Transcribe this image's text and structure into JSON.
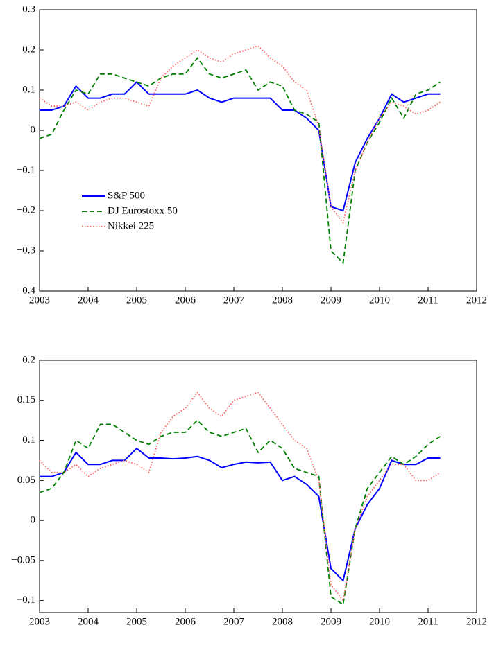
{
  "chart_data": [
    {
      "type": "line",
      "xlim": [
        2003,
        2012
      ],
      "xticks": [
        2003,
        2004,
        2005,
        2006,
        2007,
        2008,
        2009,
        2010,
        2011,
        2012
      ],
      "ylim": [
        -0.4,
        0.3
      ],
      "yticks": [
        {
          "value": -0.4,
          "label": "−0.4"
        },
        {
          "value": -0.3,
          "label": "−0.3"
        },
        {
          "value": -0.2,
          "label": "−0.2"
        },
        {
          "value": -0.1,
          "label": "−0.1"
        },
        0,
        0.1,
        0.2,
        0.3
      ],
      "legend": "center-left",
      "x": [
        2003,
        2003.25,
        2003.5,
        2003.75,
        2004,
        2004.25,
        2004.5,
        2004.75,
        2005,
        2005.25,
        2005.5,
        2005.75,
        2006,
        2006.25,
        2006.5,
        2006.75,
        2007,
        2007.25,
        2007.5,
        2007.75,
        2008,
        2008.25,
        2008.5,
        2008.75,
        2009,
        2009.25,
        2009.5,
        2009.75,
        2010,
        2010.25,
        2010.5,
        2010.75,
        2011,
        2011.25
      ],
      "series": [
        {
          "name": "S&P 500",
          "color": "#0000ff",
          "style": "solid",
          "values": [
            0.05,
            0.05,
            0.06,
            0.11,
            0.08,
            0.08,
            0.09,
            0.09,
            0.12,
            0.09,
            0.09,
            0.09,
            0.09,
            0.1,
            0.08,
            0.07,
            0.08,
            0.08,
            0.08,
            0.08,
            0.05,
            0.05,
            0.03,
            0.0,
            -0.19,
            -0.2,
            -0.08,
            -0.02,
            0.03,
            0.09,
            0.07,
            0.08,
            0.09,
            0.09
          ]
        },
        {
          "name": "DJ Eurostoxx 50",
          "color": "#008000",
          "style": "dashed",
          "values": [
            -0.02,
            -0.01,
            0.05,
            0.1,
            0.09,
            0.14,
            0.14,
            0.13,
            0.12,
            0.11,
            0.13,
            0.14,
            0.14,
            0.18,
            0.14,
            0.13,
            0.14,
            0.15,
            0.1,
            0.12,
            0.11,
            0.05,
            0.04,
            0.02,
            -0.3,
            -0.33,
            -0.1,
            -0.03,
            0.02,
            0.08,
            0.03,
            0.09,
            0.1,
            0.12
          ]
        },
        {
          "name": "Nikkei 225",
          "color": "#ff6060",
          "style": "dotted",
          "values": [
            0.08,
            0.06,
            0.06,
            0.07,
            0.05,
            0.07,
            0.08,
            0.08,
            0.07,
            0.06,
            0.13,
            0.16,
            0.18,
            0.2,
            0.18,
            0.17,
            0.19,
            0.2,
            0.21,
            0.18,
            0.16,
            0.12,
            0.1,
            0.01,
            -0.19,
            -0.23,
            -0.1,
            -0.03,
            0.03,
            0.07,
            0.06,
            0.04,
            0.05,
            0.07
          ]
        }
      ]
    },
    {
      "type": "line",
      "xlim": [
        2003,
        2012
      ],
      "xticks": [
        2003,
        2004,
        2005,
        2006,
        2007,
        2008,
        2009,
        2010,
        2011,
        2012
      ],
      "ylim": [
        -0.115,
        0.2
      ],
      "yticks": [
        {
          "value": -0.1,
          "label": "−0.1"
        },
        {
          "value": -0.05,
          "label": "−0.05"
        },
        0,
        0.05,
        0.1,
        0.15,
        0.2
      ],
      "x": [
        2003,
        2003.25,
        2003.5,
        2003.75,
        2004,
        2004.25,
        2004.5,
        2004.75,
        2005,
        2005.25,
        2005.5,
        2005.75,
        2006,
        2006.25,
        2006.5,
        2006.75,
        2007,
        2007.25,
        2007.5,
        2007.75,
        2008,
        2008.25,
        2008.5,
        2008.75,
        2009,
        2009.25,
        2009.5,
        2009.75,
        2010,
        2010.25,
        2010.5,
        2010.75,
        2011,
        2011.25
      ],
      "series": [
        {
          "color": "#0000ff",
          "style": "solid",
          "values": [
            0.055,
            0.055,
            0.06,
            0.085,
            0.07,
            0.07,
            0.075,
            0.075,
            0.09,
            0.078,
            0.078,
            0.077,
            0.078,
            0.08,
            0.075,
            0.066,
            0.07,
            0.073,
            0.072,
            0.073,
            0.05,
            0.055,
            0.045,
            0.03,
            -0.06,
            -0.075,
            -0.01,
            0.02,
            0.04,
            0.075,
            0.07,
            0.07,
            0.078,
            0.078
          ]
        },
        {
          "color": "#008000",
          "style": "dashed",
          "values": [
            0.035,
            0.04,
            0.06,
            0.1,
            0.09,
            0.12,
            0.12,
            0.11,
            0.1,
            0.095,
            0.105,
            0.11,
            0.11,
            0.125,
            0.11,
            0.105,
            0.11,
            0.115,
            0.085,
            0.1,
            0.09,
            0.065,
            0.06,
            0.055,
            -0.095,
            -0.105,
            -0.01,
            0.04,
            0.06,
            0.08,
            0.07,
            0.08,
            0.095,
            0.105
          ]
        },
        {
          "color": "#ff6060",
          "style": "dotted",
          "values": [
            0.075,
            0.06,
            0.06,
            0.07,
            0.055,
            0.065,
            0.07,
            0.075,
            0.07,
            0.06,
            0.11,
            0.13,
            0.14,
            0.16,
            0.14,
            0.13,
            0.15,
            0.155,
            0.16,
            0.14,
            0.12,
            0.1,
            0.09,
            0.05,
            -0.08,
            -0.1,
            -0.01,
            0.03,
            0.05,
            0.07,
            0.07,
            0.05,
            0.05,
            0.06
          ]
        }
      ]
    }
  ]
}
